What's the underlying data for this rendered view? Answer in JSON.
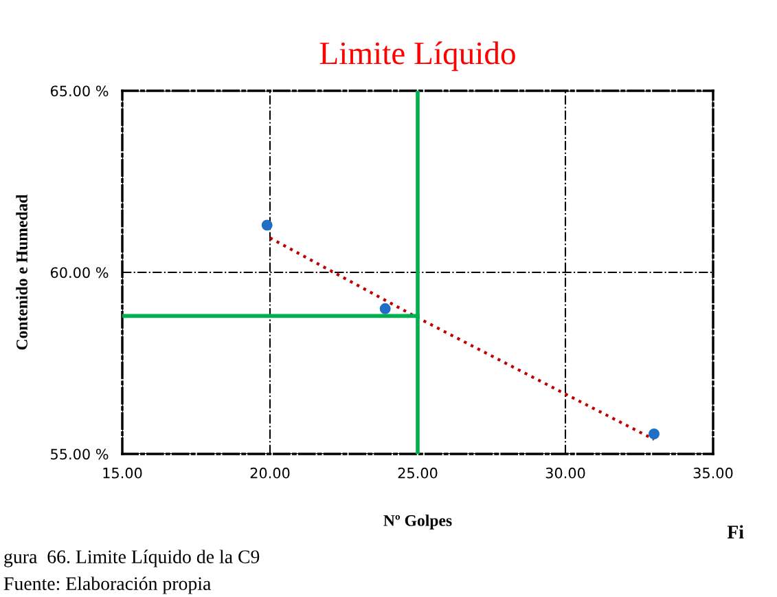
{
  "chart_data": {
    "type": "scatter",
    "title": "Limite Líquido",
    "xlabel": "Nº Golpes",
    "ylabel": "Contenido e Humedad",
    "series": [
      {
        "color": "#1f6fc5",
        "x": [
          19.9,
          23.9,
          33.0
        ],
        "values": [
          61.3,
          59.0,
          55.55
        ],
        "marker": "circle"
      },
      {
        "type": "line",
        "color": "#c00000",
        "x": [
          20.0,
          25.0,
          30.0,
          33.0
        ],
        "values": [
          60.95,
          58.75,
          56.65,
          55.4
        ],
        "line_style": "dotted",
        "marker": "none"
      },
      {
        "type": "line",
        "color": "#00b050",
        "x": [
          15.0,
          25.0
        ],
        "values": [
          58.8,
          58.8
        ],
        "line_style": "solid",
        "marker": "none"
      },
      {
        "type": "line",
        "color": "#00b050",
        "x": [
          25.0,
          25.0
        ],
        "values": [
          55.0,
          65.0
        ],
        "line_style": "solid",
        "marker": "none"
      }
    ],
    "xlim": [
      15,
      35
    ],
    "xticks": [
      {
        "value": 15,
        "label": "15.00"
      },
      {
        "value": 20,
        "label": "20.00"
      },
      {
        "value": 25,
        "label": "25.00"
      },
      {
        "value": 30,
        "label": "30.00"
      },
      {
        "value": 35,
        "label": "35.00"
      }
    ],
    "ylim": [
      55,
      65
    ],
    "yticks": [
      {
        "value": 55,
        "label": "55.00 %"
      },
      {
        "value": 60,
        "label": "60.00 %"
      },
      {
        "value": 65,
        "label": "65.00 %"
      }
    ],
    "grid": true,
    "legend": false,
    "annotations": [
      "Fi",
      "gura  66. Limite Líquido de la C9",
      "Fuente: Elaboración propia"
    ]
  }
}
